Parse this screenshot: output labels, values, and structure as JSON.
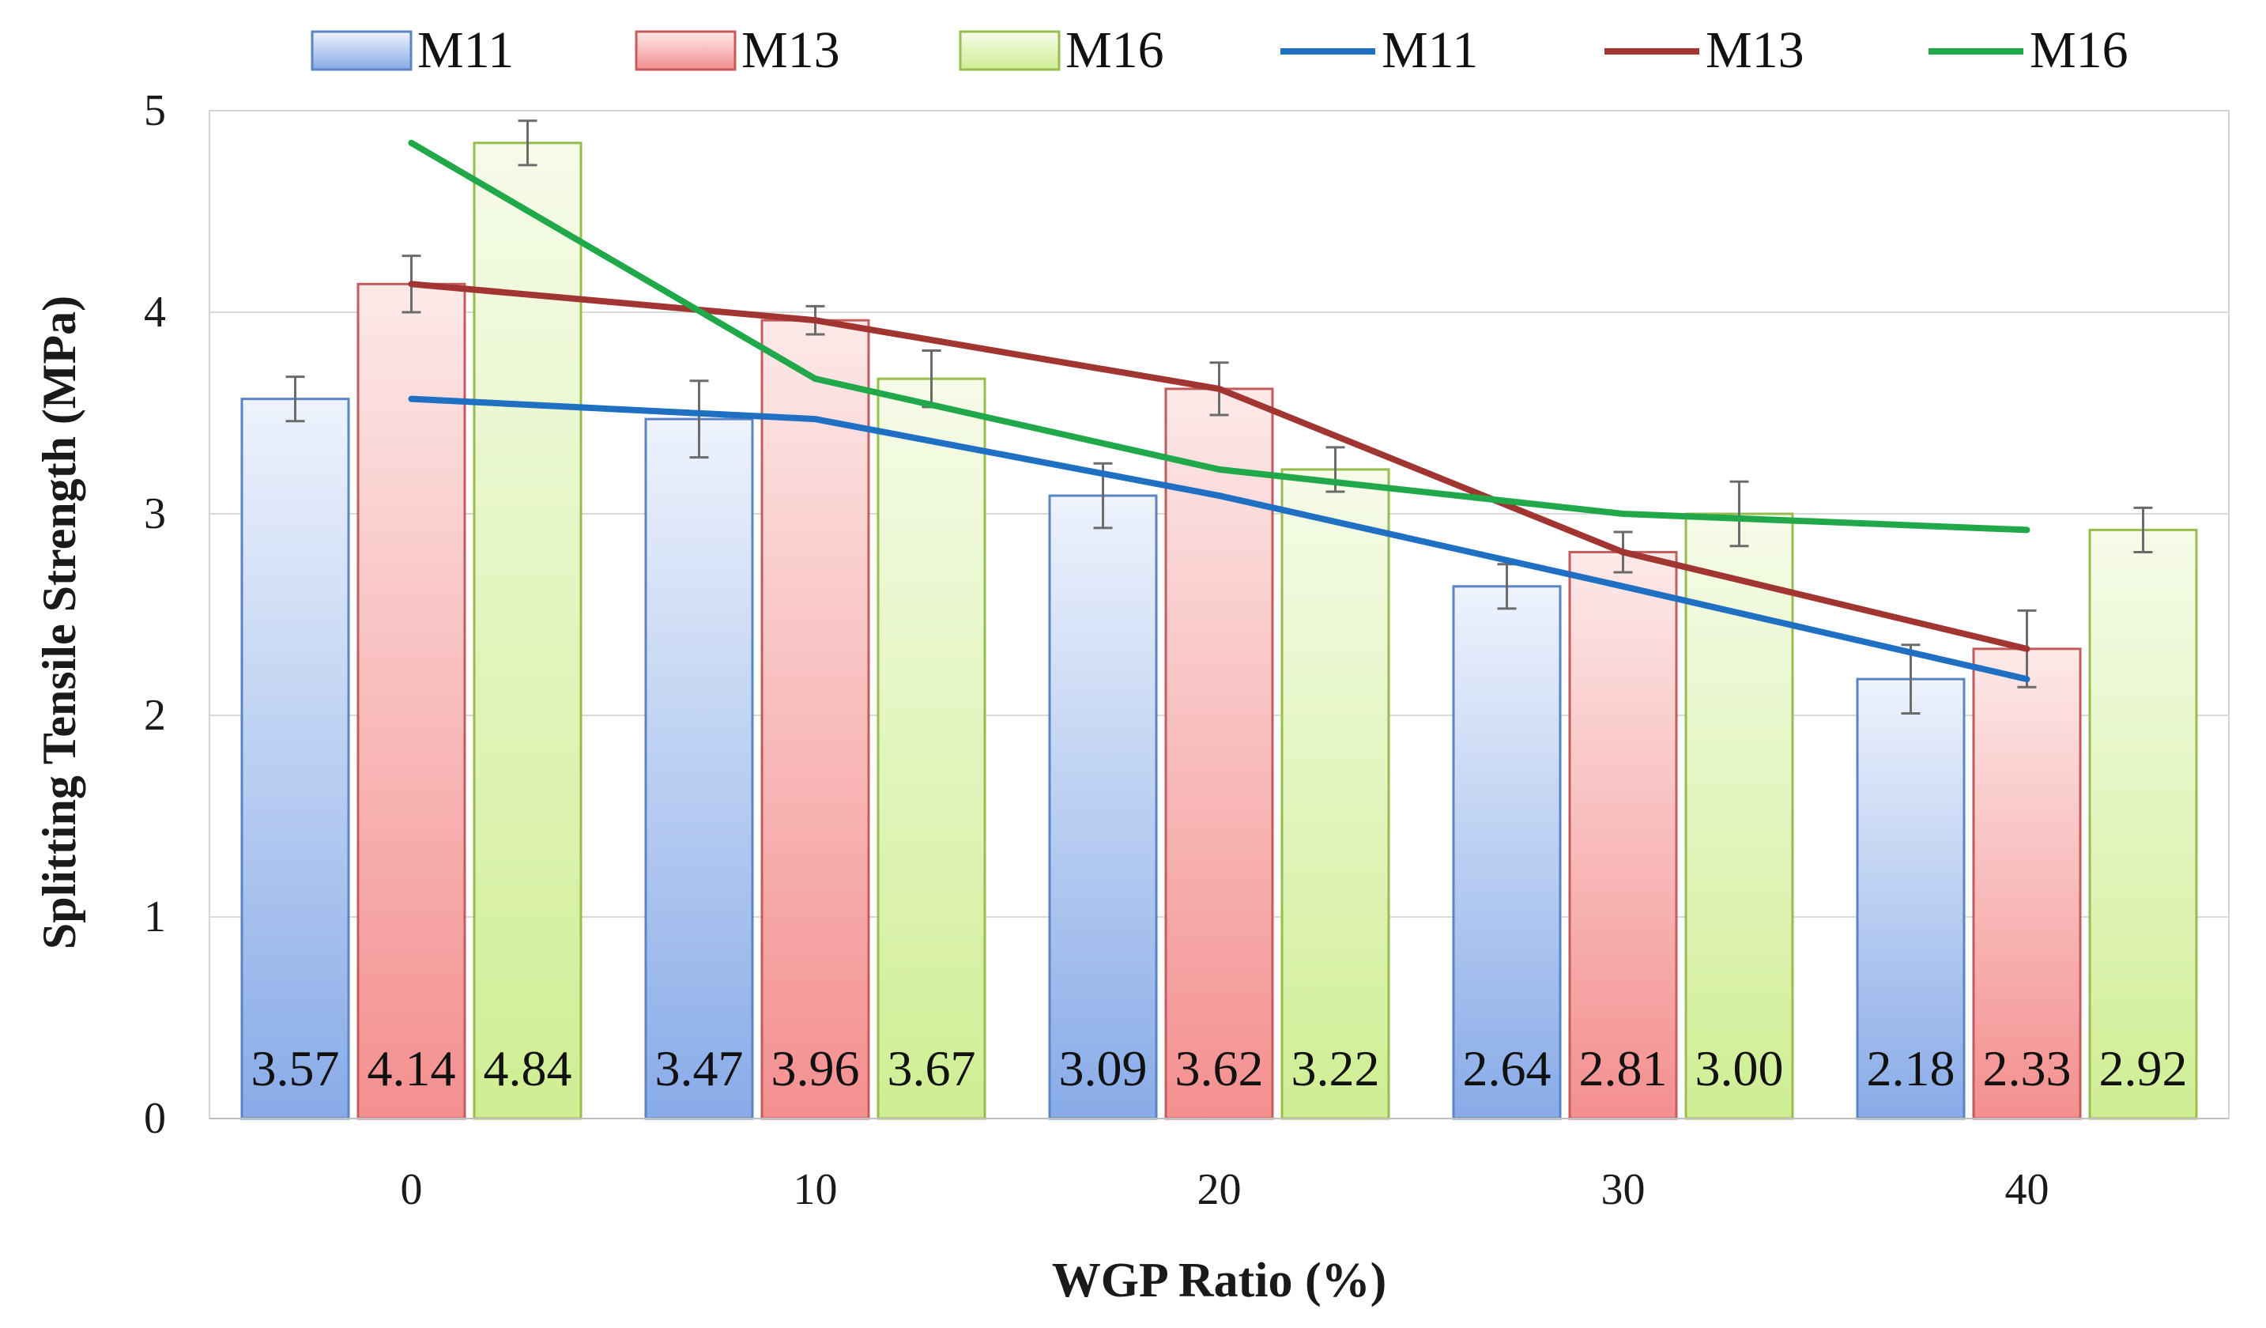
{
  "chart_data": {
    "type": "bar",
    "title": "",
    "xlabel": "WGP Ratio (%)",
    "ylabel": "Splitting Tensile Strength (MPa)",
    "categories": [
      "0",
      "10",
      "20",
      "30",
      "40"
    ],
    "ylim": [
      0,
      5
    ],
    "yticks": [
      "0",
      "1",
      "2",
      "3",
      "4",
      "5"
    ],
    "grid": true,
    "legend_position": "top",
    "series": [
      {
        "name": "M11",
        "values": [
          3.57,
          3.47,
          3.09,
          2.64,
          2.18
        ],
        "labels": [
          "3.57",
          "3.47",
          "3.09",
          "2.64",
          "2.18"
        ],
        "error": [
          0.11,
          0.19,
          0.16,
          0.11,
          0.17
        ],
        "color_light": "#eef3fc",
        "color_dark": "#88abe8",
        "border": "#5b84c4"
      },
      {
        "name": "M13",
        "values": [
          4.14,
          3.96,
          3.62,
          2.81,
          2.33
        ],
        "labels": [
          "4.14",
          "3.96",
          "3.62",
          "2.81",
          "2.33"
        ],
        "error": [
          0.14,
          0.07,
          0.13,
          0.1,
          0.19
        ],
        "color_light": "#fde9e9",
        "color_dark": "#f48f8f",
        "border": "#c45c5c"
      },
      {
        "name": "M16",
        "values": [
          4.84,
          3.67,
          3.22,
          3.0,
          2.92
        ],
        "labels": [
          "4.84",
          "3.67",
          "3.22",
          "3.00",
          "2.92"
        ],
        "error": [
          0.11,
          0.14,
          0.11,
          0.16,
          0.11
        ],
        "color_light": "#f6fbe9",
        "color_dark": "#cfee93",
        "border": "#96bd4e"
      }
    ],
    "line_series": [
      {
        "name": "M11",
        "values": [
          3.57,
          3.47,
          3.09,
          2.64,
          2.18
        ],
        "color": "#1f6fc2"
      },
      {
        "name": "M13",
        "values": [
          4.14,
          3.96,
          3.62,
          2.81,
          2.33
        ],
        "color": "#a03531"
      },
      {
        "name": "M16",
        "values": [
          4.84,
          3.67,
          3.22,
          3.0,
          2.92
        ],
        "color": "#21a84a"
      }
    ]
  }
}
